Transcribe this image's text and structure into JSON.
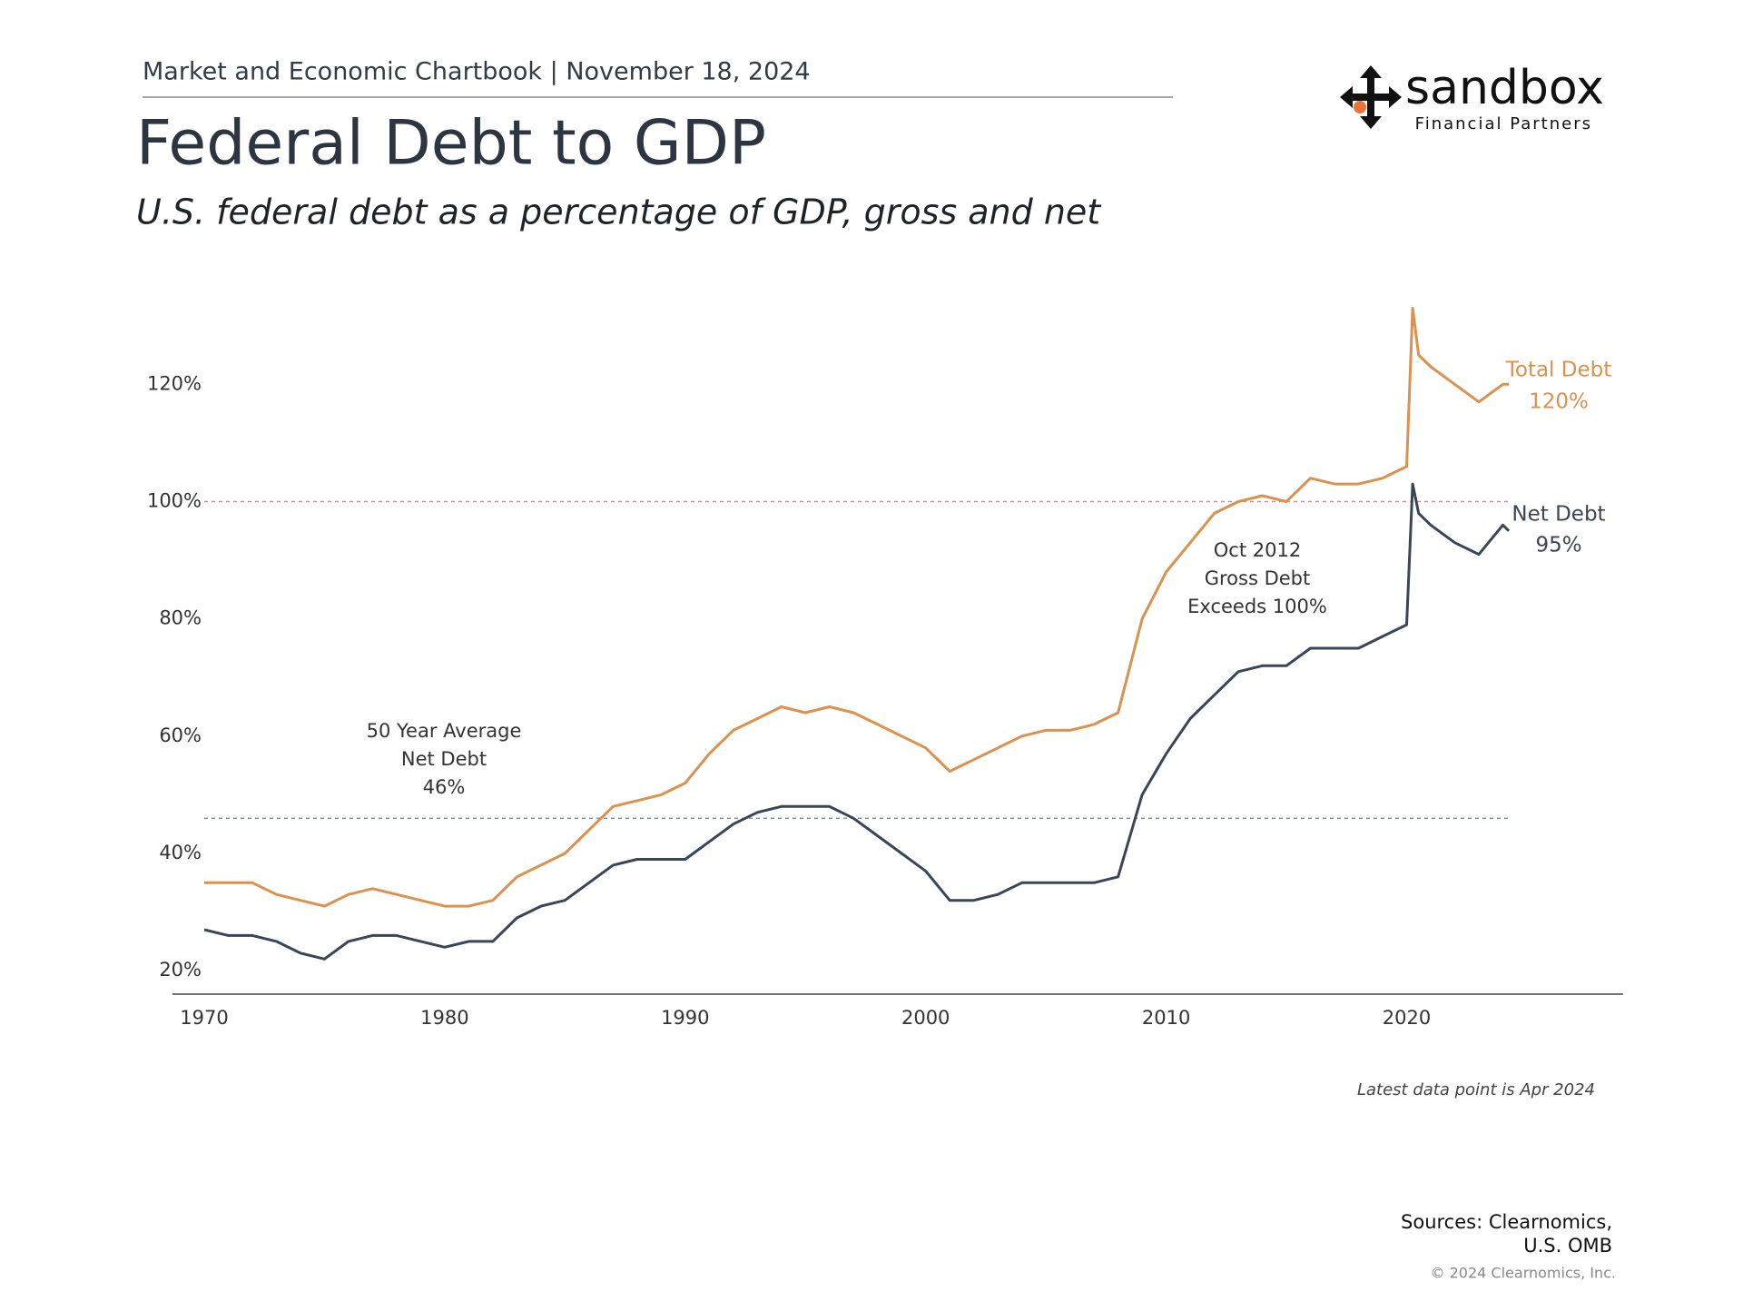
{
  "page": {
    "header": "Market and Economic Chartbook | November 18, 2024",
    "logo": "sandbox",
    "logo_sub": "Financial Partners",
    "sources": [
      "Sources: Clearnomics,",
      "U.S. OMB"
    ],
    "copyright": "© 2024 Clearnomics, Inc."
  },
  "chart_data": {
    "type": "line",
    "title": "Federal Debt to GDP",
    "subtitle": "U.S. federal debt as a percentage of GDP, gross and net",
    "note": "Latest data point is Apr 2024",
    "x": [
      1970,
      1971,
      1972,
      1973,
      1974,
      1975,
      1976,
      1977,
      1978,
      1979,
      1980,
      1981,
      1982,
      1983,
      1984,
      1985,
      1986,
      1987,
      1988,
      1989,
      1990,
      1991,
      1992,
      1993,
      1994,
      1995,
      1996,
      1997,
      1998,
      1999,
      2000,
      2001,
      2002,
      2003,
      2004,
      2005,
      2006,
      2007,
      2008,
      2009,
      2010,
      2011,
      2012,
      2013,
      2014,
      2015,
      2016,
      2017,
      2018,
      2019,
      2020,
      2020.25,
      2020.5,
      2021,
      2022,
      2023,
      2024,
      2024.25
    ],
    "series": [
      {
        "name": "Total Debt",
        "color": "#d9924f",
        "end_label": "120%",
        "values": [
          35,
          35,
          35,
          33,
          32,
          31,
          33,
          34,
          33,
          32,
          31,
          31,
          32,
          36,
          38,
          40,
          44,
          48,
          49,
          50,
          52,
          57,
          61,
          63,
          65,
          64,
          65,
          64,
          62,
          60,
          58,
          54,
          56,
          58,
          60,
          61,
          61,
          62,
          64,
          80,
          88,
          93,
          98,
          100,
          101,
          100,
          104,
          103,
          103,
          104,
          106,
          133,
          125,
          123,
          120,
          117,
          120,
          120
        ]
      },
      {
        "name": "Net Debt",
        "color": "#3a4655",
        "end_label": "95%",
        "values": [
          27,
          26,
          26,
          25,
          23,
          22,
          25,
          26,
          26,
          25,
          24,
          25,
          25,
          29,
          31,
          32,
          35,
          38,
          39,
          39,
          39,
          42,
          45,
          47,
          48,
          48,
          48,
          46,
          43,
          40,
          37,
          32,
          32,
          33,
          35,
          35,
          35,
          35,
          36,
          50,
          57,
          63,
          67,
          71,
          72,
          72,
          75,
          75,
          75,
          77,
          79,
          103,
          98,
          96,
          93,
          91,
          96,
          95
        ]
      }
    ],
    "hlines": [
      {
        "value": 100,
        "color": "#e08a8a"
      },
      {
        "value": 46,
        "color": "#7f98b8"
      }
    ],
    "annotations": [
      [
        "50 Year Average",
        "Net Debt",
        "46%"
      ],
      [
        "Oct 2012",
        "Gross Debt",
        "Exceeds 100%"
      ]
    ],
    "xlim": [
      1970,
      2029
    ],
    "xticks": [
      1970,
      1980,
      1990,
      2000,
      2010,
      2020
    ],
    "ylim": [
      16,
      136
    ],
    "yticks": [
      {
        "value": 20,
        "label": "20%"
      },
      {
        "value": 40,
        "label": "40%"
      },
      {
        "value": 60,
        "label": "60%"
      },
      {
        "value": 80,
        "label": "80%"
      },
      {
        "value": 100,
        "label": "100%"
      },
      {
        "value": 120,
        "label": "120%"
      }
    ]
  }
}
